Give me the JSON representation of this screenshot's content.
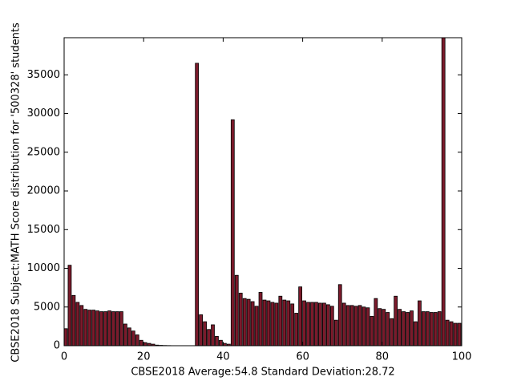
{
  "chart_data": {
    "type": "bar",
    "xlabel": "CBSE2018 Average:54.8 Standard Deviation:28.72",
    "ylabel": "CBSE2018 Subject:MATH Score distribution for '500328' students",
    "color": "#7b1a2b",
    "x": [
      0,
      1,
      2,
      3,
      4,
      5,
      6,
      7,
      8,
      9,
      10,
      11,
      12,
      13,
      14,
      15,
      16,
      17,
      18,
      19,
      20,
      21,
      22,
      23,
      24,
      25,
      26,
      27,
      28,
      29,
      30,
      31,
      32,
      33,
      34,
      35,
      36,
      37,
      38,
      39,
      40,
      41,
      42,
      43,
      44,
      45,
      46,
      47,
      48,
      49,
      50,
      51,
      52,
      53,
      54,
      55,
      56,
      57,
      58,
      59,
      60,
      61,
      62,
      63,
      64,
      65,
      66,
      67,
      68,
      69,
      70,
      71,
      72,
      73,
      74,
      75,
      76,
      77,
      78,
      79,
      80,
      81,
      82,
      83,
      84,
      85,
      86,
      87,
      88,
      89,
      90,
      91,
      92,
      93,
      94,
      95,
      96,
      97,
      98,
      99
    ],
    "values": [
      2200,
      10400,
      6500,
      5600,
      5200,
      4700,
      4600,
      4600,
      4500,
      4400,
      4400,
      4500,
      4400,
      4400,
      4400,
      2800,
      2300,
      1900,
      1400,
      700,
      400,
      300,
      200,
      80,
      50,
      30,
      20,
      10,
      10,
      10,
      10,
      10,
      10,
      36500,
      4000,
      3100,
      2100,
      2700,
      1200,
      700,
      300,
      200,
      29200,
      9100,
      6800,
      6100,
      6000,
      5700,
      5100,
      6900,
      5900,
      5800,
      5600,
      5500,
      6400,
      5900,
      5800,
      5400,
      4200,
      7600,
      5800,
      5600,
      5600,
      5600,
      5500,
      5500,
      5300,
      5100,
      3300,
      7900,
      5500,
      5200,
      5200,
      5100,
      5200,
      5000,
      4900,
      3800,
      6100,
      4800,
      4700,
      4300,
      3500,
      6400,
      4700,
      4400,
      4300,
      4500,
      3100,
      5800,
      4400,
      4400,
      4300,
      4300,
      4400,
      39800,
      3300,
      3100,
      2900,
      2900
    ],
    "xlim": [
      0,
      100
    ],
    "xticks": [
      0,
      20,
      40,
      60,
      80,
      100
    ],
    "ylim": [
      0,
      39800
    ],
    "yticks": [
      0,
      5000,
      10000,
      15000,
      20000,
      25000,
      30000,
      35000
    ]
  }
}
